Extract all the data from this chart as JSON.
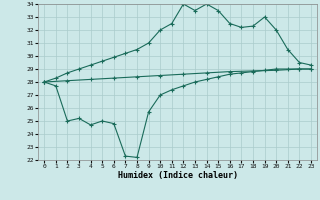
{
  "xlabel": "Humidex (Indice chaleur)",
  "bg_color": "#cce8e8",
  "grid_color": "#aacccc",
  "line_color": "#1a6b5a",
  "xlim": [
    -0.5,
    23.5
  ],
  "ylim": [
    22,
    34
  ],
  "xticks": [
    0,
    1,
    2,
    3,
    4,
    5,
    6,
    7,
    8,
    9,
    10,
    11,
    12,
    13,
    14,
    15,
    16,
    17,
    18,
    19,
    20,
    21,
    22,
    23
  ],
  "yticks": [
    22,
    23,
    24,
    25,
    26,
    27,
    28,
    29,
    30,
    31,
    32,
    33,
    34
  ],
  "line1_x": [
    0,
    1,
    2,
    3,
    4,
    5,
    6,
    7,
    8,
    9,
    10,
    11,
    12,
    13,
    14,
    15,
    16,
    17,
    18,
    19,
    20,
    21,
    22,
    23
  ],
  "line1_y": [
    28.0,
    28.3,
    28.7,
    29.0,
    29.3,
    29.6,
    29.9,
    30.2,
    30.5,
    31.0,
    32.0,
    32.5,
    34.0,
    33.5,
    34.0,
    33.5,
    32.5,
    32.2,
    32.3,
    33.0,
    32.0,
    30.5,
    29.5,
    29.3
  ],
  "line2_x": [
    0,
    2,
    4,
    6,
    8,
    10,
    12,
    14,
    16,
    18,
    20,
    22,
    23
  ],
  "line2_y": [
    28.0,
    28.1,
    28.2,
    28.3,
    28.4,
    28.5,
    28.6,
    28.7,
    28.8,
    28.85,
    28.9,
    29.0,
    29.0
  ],
  "line3_x": [
    0,
    1,
    2,
    3,
    4,
    5,
    6,
    7,
    8,
    9,
    10,
    11,
    12,
    13,
    14,
    15,
    16,
    17,
    18,
    19,
    20,
    21,
    22,
    23
  ],
  "line3_y": [
    28.0,
    27.7,
    25.0,
    25.2,
    24.7,
    25.0,
    24.8,
    22.3,
    22.2,
    25.7,
    27.0,
    27.4,
    27.7,
    28.0,
    28.2,
    28.4,
    28.6,
    28.7,
    28.8,
    28.9,
    29.0,
    29.0,
    29.0,
    29.0
  ]
}
